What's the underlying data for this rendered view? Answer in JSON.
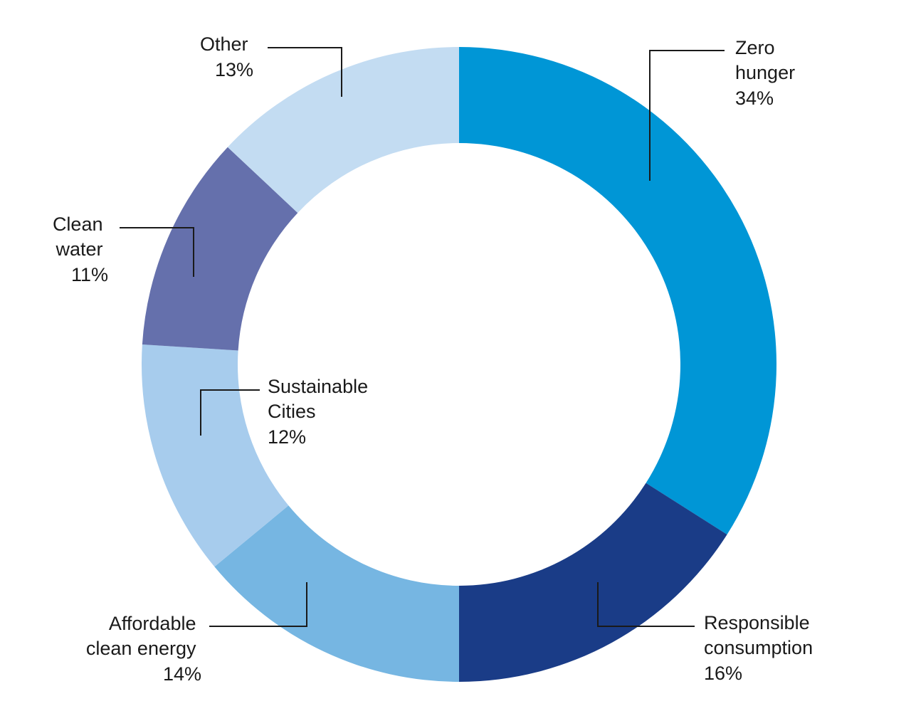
{
  "chart_data": {
    "type": "pie",
    "variant": "donut",
    "title": "",
    "legend": "none",
    "start": "top",
    "direction": "clockwise",
    "slices": [
      {
        "category": "Zero hunger",
        "label_lines": [
          "Zero",
          "hunger"
        ],
        "value": 34,
        "value_label": "34%",
        "color": "#0096d6"
      },
      {
        "category": "Responsible consumption",
        "label_lines": [
          "Responsible",
          "consumption"
        ],
        "value": 16,
        "value_label": "16%",
        "color": "#1a3c87"
      },
      {
        "category": "Affordable clean energy",
        "label_lines": [
          "Affordable",
          "clean energy"
        ],
        "value": 14,
        "value_label": "14%",
        "color": "#76b6e2"
      },
      {
        "category": "Sustainable Cities",
        "label_lines": [
          "Sustainable",
          "Cities"
        ],
        "value": 12,
        "value_label": "12%",
        "color": "#a7cced"
      },
      {
        "category": "Clean water",
        "label_lines": [
          "Clean",
          "water"
        ],
        "value": 11,
        "value_label": "11%",
        "color": "#6570ac"
      },
      {
        "category": "Other",
        "label_lines": [
          "Other"
        ],
        "value": 13,
        "value_label": "13%",
        "color": "#c3dcf2"
      }
    ]
  }
}
